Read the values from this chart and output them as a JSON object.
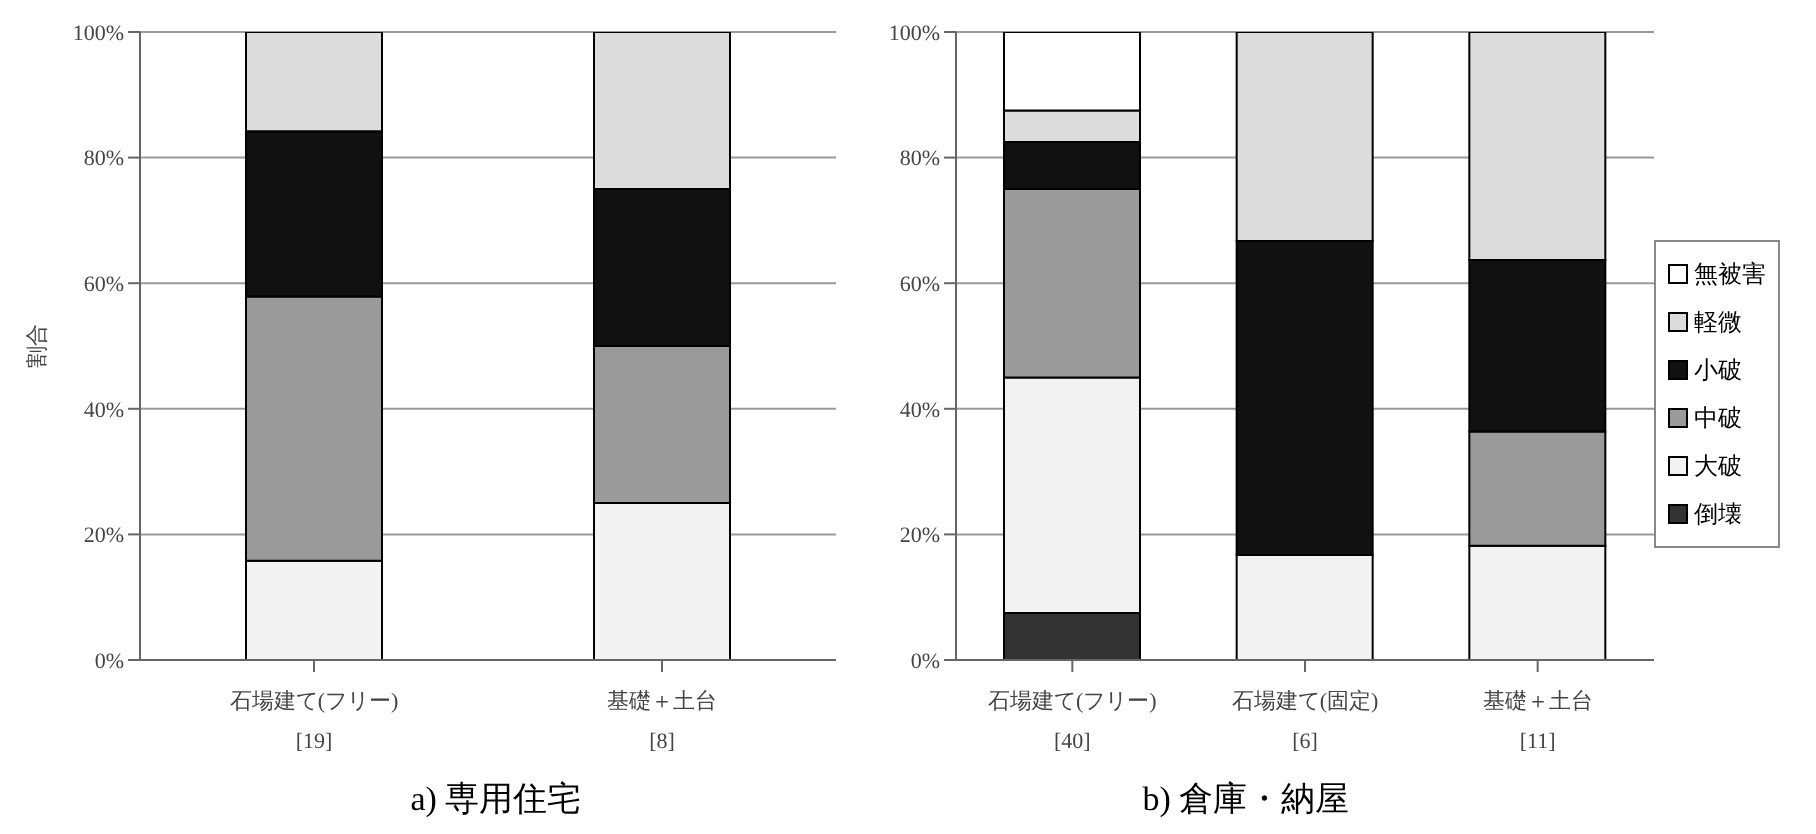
{
  "chart_data": [
    {
      "type": "bar",
      "stacked": true,
      "title": "a) 専用住宅",
      "ylabel": "割合",
      "categories": [
        "石場建て(フリー)\n[19]",
        "基礎＋土台\n[8]"
      ],
      "series": [
        {
          "color": "#333333",
          "values": [
            0,
            0
          ]
        },
        {
          "color": "#f2f2f2",
          "values": [
            15.8,
            25
          ]
        },
        {
          "color": "#9a9a9a",
          "values": [
            42.1,
            25
          ]
        },
        {
          "color": "#111111",
          "values": [
            26.3,
            25
          ]
        },
        {
          "color": "#dcdcdc",
          "values": [
            15.8,
            25
          ]
        },
        {
          "color": "#ffffff",
          "values": [
            0,
            0
          ]
        }
      ],
      "ylim": [
        0,
        100
      ],
      "yticks": [
        {
          "value": 0,
          "label": "0%"
        },
        {
          "value": 20,
          "label": "20%"
        },
        {
          "value": 40,
          "label": "40%"
        },
        {
          "value": 60,
          "label": "60%"
        },
        {
          "value": 80,
          "label": "80%"
        },
        {
          "value": 100,
          "label": "100%"
        }
      ],
      "grid": "y",
      "legend": false
    },
    {
      "type": "bar",
      "stacked": true,
      "title": "b) 倉庫・納屋",
      "categories": [
        "石場建て(フリー)\n[40]",
        "石場建て(固定)\n[6]",
        "基礎＋土台\n[11]"
      ],
      "series": [
        {
          "name": "倒壊",
          "color": "#333333",
          "values": [
            7.5,
            0,
            0
          ]
        },
        {
          "name": "大破",
          "color": "#f2f2f2",
          "values": [
            37.5,
            16.7,
            18.2
          ]
        },
        {
          "name": "中破",
          "color": "#9a9a9a",
          "values": [
            30,
            0,
            18.2
          ]
        },
        {
          "name": "小破",
          "color": "#111111",
          "values": [
            7.5,
            50,
            27.3
          ]
        },
        {
          "name": "軽微",
          "color": "#dcdcdc",
          "values": [
            5,
            33.3,
            36.4
          ]
        },
        {
          "name": "無被害",
          "color": "#ffffff",
          "values": [
            12.5,
            0,
            0
          ]
        }
      ],
      "ylim": [
        0,
        100
      ],
      "yticks": [
        {
          "value": 0,
          "label": "0%"
        },
        {
          "value": 20,
          "label": "20%"
        },
        {
          "value": 40,
          "label": "40%"
        },
        {
          "value": 60,
          "label": "60%"
        },
        {
          "value": 80,
          "label": "80%"
        },
        {
          "value": 100,
          "label": "100%"
        }
      ],
      "grid": "y",
      "legend": "right"
    }
  ]
}
